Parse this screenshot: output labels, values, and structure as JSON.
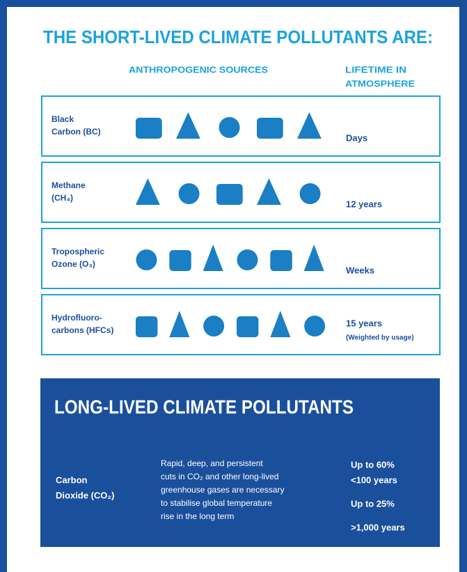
{
  "title": "THE SHORT-LIVED CLIMATE POLLUTANTS ARE:",
  "headers": {
    "sources": "ANTHROPOGENIC SOURCES",
    "lifetime": [
      "LIFETIME IN",
      "ATMOSPHERE"
    ]
  },
  "rows": [
    {
      "name": [
        "Black",
        "Carbon (BC)"
      ],
      "lifetime": [
        "Days"
      ]
    },
    {
      "name": [
        "Methane",
        "(CH₄)"
      ],
      "lifetime": [
        "12 years"
      ]
    },
    {
      "name": [
        "Tropospheric",
        "Ozone (O₃)"
      ],
      "lifetime": [
        "Weeks"
      ]
    },
    {
      "name": [
        "Hydrofluoro-",
        "carbons (HFCs)"
      ],
      "lifetime": [
        "15 years",
        "(Weighted by usage)"
      ]
    }
  ],
  "long_lived": {
    "title": "LONG-LIVED CLIMATE POLLUTANTS",
    "name": [
      "Carbon",
      "Dioxide (CO₂)"
    ],
    "description": [
      "Rapid, deep, and persistent",
      "cuts in CO₂ and other long-lived",
      "greenhouse gases are necessary",
      "to stabilise global temperature",
      "rise in the long term"
    ],
    "lifetimes": [
      "Up to 60%",
      "<100 years",
      "Up to 25%",
      ">1,000 years"
    ]
  }
}
